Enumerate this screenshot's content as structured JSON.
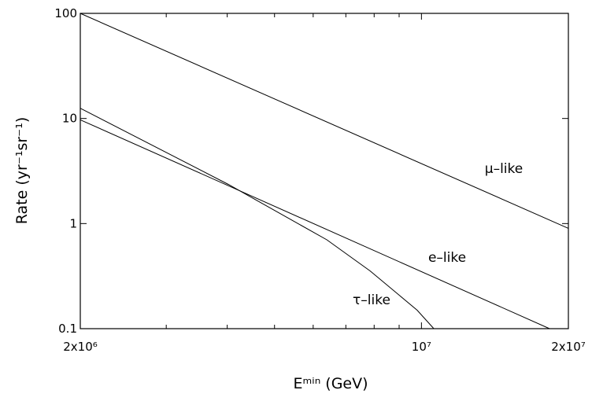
{
  "chart_data": {
    "type": "line",
    "x_label": "Eᵐⁱⁿ (GeV)",
    "y_label": "Rate (yr⁻¹sr⁻¹)",
    "xlog": true,
    "ylog": true,
    "xlim": [
      2000000,
      20000000
    ],
    "ylim": [
      0.1,
      100
    ],
    "xticks": [
      {
        "value": 2000000,
        "label": "2x10⁶"
      },
      {
        "value": 10000000,
        "label": "10⁷"
      },
      {
        "value": 20000000,
        "label": "2x10⁷"
      }
    ],
    "xminorticks": [
      3000000,
      4000000,
      5000000,
      6000000,
      7000000,
      8000000,
      9000000
    ],
    "yticks": [
      0.1,
      1,
      10,
      100
    ],
    "series": [
      {
        "name": "μ–like",
        "color": "#000000",
        "x": [
          2000000,
          20000000
        ],
        "values": [
          100,
          0.9
        ]
      },
      {
        "name": "e–like",
        "color": "#000000",
        "x": [
          2000000,
          18300000
        ],
        "values": [
          9.7,
          0.1
        ]
      },
      {
        "name": "τ–like",
        "color": "#000000",
        "x": [
          2000000,
          4020000,
          6400000,
          7850000,
          9800000,
          10600000
        ],
        "values": [
          12.5,
          2.36,
          0.7,
          0.354,
          0.15,
          0.1
        ]
      }
    ]
  }
}
